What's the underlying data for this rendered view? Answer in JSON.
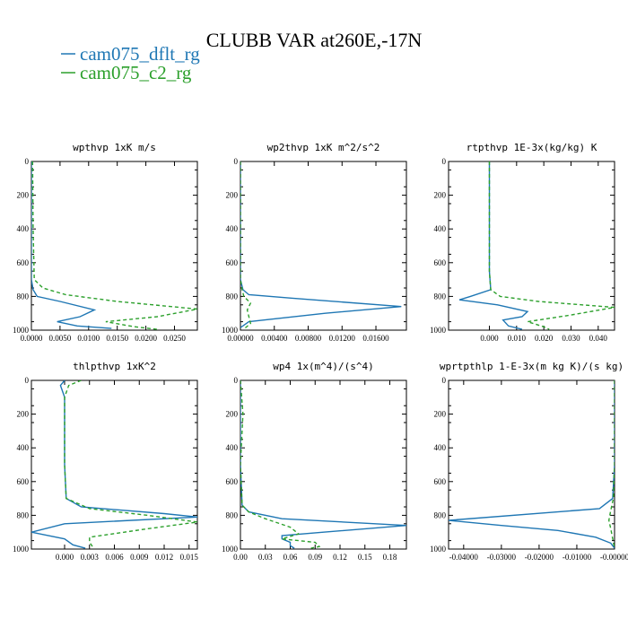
{
  "figure": {
    "title": "CLUBB VAR at260E,-17N",
    "legend": [
      {
        "label": "cam075_dflt_rg",
        "color": "#1f77b4",
        "dash": "solid"
      },
      {
        "label": "cam075_c2_rg",
        "color": "#2ca02c",
        "dash": "dashed"
      }
    ]
  },
  "chart_data": [
    {
      "type": "line",
      "title": "wpthvp  1xK m/s",
      "xlim": [
        0.0,
        0.029
      ],
      "ylim": [
        1000,
        0
      ],
      "yticks": [
        "0",
        "200",
        "400",
        "600",
        "800",
        "1000"
      ],
      "xticks": [
        "0.0000",
        "0.0050",
        "0.0100",
        "0.0150",
        "0.0200",
        "0.0250"
      ],
      "series": [
        {
          "name": "cam075_dflt_rg",
          "values": [
            [
              0.0,
              0
            ],
            [
              0.0,
              500
            ],
            [
              0.0,
              700
            ],
            [
              0.0003,
              760
            ],
            [
              0.001,
              800
            ],
            [
              0.005,
              830
            ],
            [
              0.011,
              880
            ],
            [
              0.0085,
              920
            ],
            [
              0.0045,
              950
            ],
            [
              0.008,
              975
            ],
            [
              0.014,
              990
            ]
          ]
        },
        {
          "name": "cam075_c2_rg",
          "values": [
            [
              0.0002,
              0
            ],
            [
              0.0003,
              400
            ],
            [
              0.0005,
              700
            ],
            [
              0.002,
              750
            ],
            [
              0.006,
              790
            ],
            [
              0.015,
              830
            ],
            [
              0.029,
              875
            ],
            [
              0.022,
              920
            ],
            [
              0.013,
              950
            ],
            [
              0.018,
              980
            ],
            [
              0.022,
              995
            ]
          ]
        }
      ]
    },
    {
      "type": "line",
      "title": "wp2thvp  1xK m^2/s^2",
      "xlim": [
        0.0,
        0.0196
      ],
      "ylim": [
        1000,
        0
      ],
      "yticks": [
        "0",
        "200",
        "400",
        "600",
        "800",
        "1000"
      ],
      "xticks": [
        "0.00000",
        "0.00400",
        "0.00800",
        "0.01200",
        "0.01600"
      ],
      "series": [
        {
          "name": "cam075_dflt_rg",
          "values": [
            [
              0.0,
              0
            ],
            [
              0.0,
              700
            ],
            [
              0.0003,
              760
            ],
            [
              0.001,
              790
            ],
            [
              0.006,
              810
            ],
            [
              0.019,
              860
            ],
            [
              0.01,
              900
            ],
            [
              0.001,
              950
            ],
            [
              0.0,
              985
            ]
          ]
        },
        {
          "name": "cam075_c2_rg",
          "values": [
            [
              0.0,
              0
            ],
            [
              0.0,
              700
            ],
            [
              0.0002,
              760
            ],
            [
              0.0004,
              800
            ],
            [
              0.0012,
              840
            ],
            [
              0.0008,
              880
            ],
            [
              0.001,
              920
            ],
            [
              0.0012,
              960
            ],
            [
              0.0005,
              990
            ]
          ]
        }
      ]
    },
    {
      "type": "line",
      "title": "rtpthvp  1E-3x(kg/kg) K",
      "xlim": [
        -0.015,
        0.046
      ],
      "ylim": [
        1000,
        0
      ],
      "yticks": [
        "0",
        "200",
        "400",
        "600",
        "800",
        "1000"
      ],
      "xticks": [
        "0.000",
        "0.010",
        "0.020",
        "0.030",
        "0.040"
      ],
      "series": [
        {
          "name": "cam075_dflt_rg",
          "values": [
            [
              0.0,
              0
            ],
            [
              0.0,
              650
            ],
            [
              0.0005,
              760
            ],
            [
              -0.007,
              800
            ],
            [
              -0.011,
              820
            ],
            [
              0.003,
              850
            ],
            [
              0.014,
              890
            ],
            [
              0.012,
              920
            ],
            [
              0.005,
              940
            ],
            [
              0.007,
              975
            ],
            [
              0.012,
              995
            ]
          ]
        },
        {
          "name": "cam075_c2_rg",
          "values": [
            [
              0.0,
              0
            ],
            [
              0.0,
              650
            ],
            [
              0.0005,
              760
            ],
            [
              0.004,
              800
            ],
            [
              0.018,
              830
            ],
            [
              0.046,
              865
            ],
            [
              0.03,
              910
            ],
            [
              0.014,
              950
            ],
            [
              0.02,
              980
            ],
            [
              0.022,
              995
            ]
          ]
        }
      ]
    },
    {
      "type": "line",
      "title": "thlpthvp  1xK^2",
      "xlim": [
        -0.004,
        0.016
      ],
      "ylim": [
        1000,
        0
      ],
      "yticks": [
        "0",
        "200",
        "400",
        "600",
        "800",
        "1000"
      ],
      "xticks": [
        "0.000",
        "0.003",
        "0.006",
        "0.009",
        "0.012",
        "0.015"
      ],
      "series": [
        {
          "name": "cam075_dflt_rg",
          "values": [
            [
              0.0,
              0
            ],
            [
              -0.0005,
              30
            ],
            [
              0.0,
              100
            ],
            [
              0.0,
              500
            ],
            [
              0.0002,
              700
            ],
            [
              0.002,
              750
            ],
            [
              0.012,
              790
            ],
            [
              0.016,
              810
            ],
            [
              0.0,
              850
            ],
            [
              -0.004,
              900
            ],
            [
              0.0,
              940
            ],
            [
              0.001,
              975
            ],
            [
              0.0025,
              995
            ]
          ]
        },
        {
          "name": "cam075_c2_rg",
          "values": [
            [
              0.002,
              0
            ],
            [
              0.0005,
              30
            ],
            [
              0.0,
              100
            ],
            [
              0.0,
              500
            ],
            [
              0.0002,
              700
            ],
            [
              0.003,
              760
            ],
            [
              0.01,
              800
            ],
            [
              0.016,
              840
            ],
            [
              0.01,
              880
            ],
            [
              0.003,
              930
            ],
            [
              0.003,
              960
            ],
            [
              0.0035,
              995
            ]
          ]
        }
      ]
    },
    {
      "type": "line",
      "title": "wp4  1x(m^4)/(s^4)",
      "xlim": [
        0.0,
        0.2
      ],
      "ylim": [
        1000,
        0
      ],
      "yticks": [
        "0",
        "200",
        "400",
        "600",
        "800",
        "1000"
      ],
      "xticks": [
        "0.00",
        "0.03",
        "0.06",
        "0.09",
        "0.12",
        "0.15",
        "0.18"
      ],
      "series": [
        {
          "name": "cam075_dflt_rg",
          "values": [
            [
              0.0,
              0
            ],
            [
              0.0,
              500
            ],
            [
              0.002,
              740
            ],
            [
              0.01,
              780
            ],
            [
              0.05,
              820
            ],
            [
              0.2,
              860
            ],
            [
              0.1,
              900
            ],
            [
              0.05,
              920
            ],
            [
              0.05,
              940
            ],
            [
              0.06,
              960
            ],
            [
              0.06,
              980
            ],
            [
              0.065,
              995
            ]
          ]
        },
        {
          "name": "cam075_c2_rg",
          "values": [
            [
              0.0,
              0
            ],
            [
              0.003,
              200
            ],
            [
              0.0,
              500
            ],
            [
              0.002,
              740
            ],
            [
              0.01,
              780
            ],
            [
              0.03,
              820
            ],
            [
              0.06,
              870
            ],
            [
              0.07,
              910
            ],
            [
              0.05,
              940
            ],
            [
              0.09,
              960
            ],
            [
              0.095,
              985
            ],
            [
              0.085,
              995
            ]
          ]
        }
      ]
    },
    {
      "type": "line",
      "title": "wprtpthlp  1-E-3x(m kg K)/(s kg)",
      "xlim": [
        -0.044,
        0.0
      ],
      "ylim": [
        1000,
        0
      ],
      "yticks": [
        "0",
        "200",
        "400",
        "600",
        "800",
        "1000"
      ],
      "xticks": [
        "-0.04000",
        "-0.03000",
        "-0.02000",
        "-0.01000",
        "-0.00000"
      ],
      "series": [
        {
          "name": "cam075_dflt_rg",
          "values": [
            [
              0.0,
              0
            ],
            [
              0.0,
              500
            ],
            [
              -0.0005,
              700
            ],
            [
              -0.004,
              760
            ],
            [
              -0.044,
              830
            ],
            [
              -0.03,
              860
            ],
            [
              -0.015,
              890
            ],
            [
              -0.005,
              930
            ],
            [
              -0.001,
              965
            ],
            [
              0.0,
              995
            ]
          ]
        },
        {
          "name": "cam075_c2_rg",
          "values": [
            [
              0.0,
              0
            ],
            [
              0.0,
              500
            ],
            [
              -0.0003,
              700
            ],
            [
              -0.001,
              770
            ],
            [
              -0.0015,
              830
            ],
            [
              -0.001,
              880
            ],
            [
              0.0,
              995
            ]
          ]
        }
      ]
    }
  ]
}
